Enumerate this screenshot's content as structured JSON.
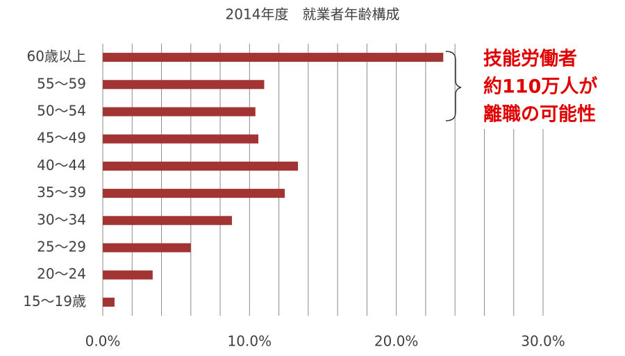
{
  "chart_data": {
    "type": "bar",
    "orientation": "horizontal",
    "title": "2014年度　就業者年齢構成",
    "categories": [
      "60歳以上",
      "55〜59",
      "50〜54",
      "45〜49",
      "40〜44",
      "35〜39",
      "30〜34",
      "25〜29",
      "20〜24",
      "15〜19歳"
    ],
    "values": [
      23.2,
      11.0,
      10.4,
      10.6,
      13.3,
      12.4,
      8.8,
      6.0,
      3.4,
      0.8
    ],
    "color": "#a33434",
    "xlim": [
      0,
      30
    ],
    "xticks": [
      {
        "value": 0,
        "label": "0.0%"
      },
      {
        "value": 10,
        "label": "10.0%"
      },
      {
        "value": 20,
        "label": "20.0%"
      },
      {
        "value": 30,
        "label": "30.0%"
      }
    ],
    "xgrid": [
      0,
      2,
      4,
      6,
      8,
      10,
      12,
      14,
      16,
      18,
      20,
      22,
      24,
      26,
      28,
      30
    ],
    "grid": true,
    "annotation": [
      "技能労働者",
      "約110万人が",
      "離職の可能性"
    ]
  }
}
